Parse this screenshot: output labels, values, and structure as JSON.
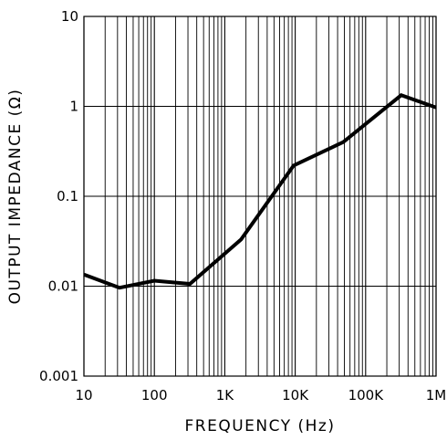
{
  "chart_data": {
    "type": "line",
    "title": "",
    "xlabel": "FREQUENCY (Hz)",
    "ylabel": "OUTPUT IMPEDANCE (Ω)",
    "x_scale": "log",
    "y_scale": "log",
    "xlim": [
      10,
      1000000
    ],
    "ylim": [
      0.001,
      10
    ],
    "grid": true,
    "x_ticks": [
      {
        "value": 10,
        "label": "10"
      },
      {
        "value": 100,
        "label": "100"
      },
      {
        "value": 1000,
        "label": "1K"
      },
      {
        "value": 10000,
        "label": "10K"
      },
      {
        "value": 100000,
        "label": "100K"
      },
      {
        "value": 1000000,
        "label": "1M"
      }
    ],
    "y_ticks": [
      {
        "value": 0.001,
        "label": "0.001"
      },
      {
        "value": 0.01,
        "label": "0.01"
      },
      {
        "value": 0.1,
        "label": "0.1"
      },
      {
        "value": 1,
        "label": "1"
      },
      {
        "value": 10,
        "label": "10"
      }
    ],
    "series": [
      {
        "x": [
          10,
          32,
          100,
          320,
          1700,
          9500,
          48000,
          320000,
          1000000
        ],
        "y": [
          0.0135,
          0.0096,
          0.0115,
          0.0106,
          0.033,
          0.22,
          0.4,
          1.33,
          0.97
        ]
      }
    ],
    "colors": {
      "line": "#000000",
      "grid": "#000000",
      "background": "#ffffff"
    }
  }
}
